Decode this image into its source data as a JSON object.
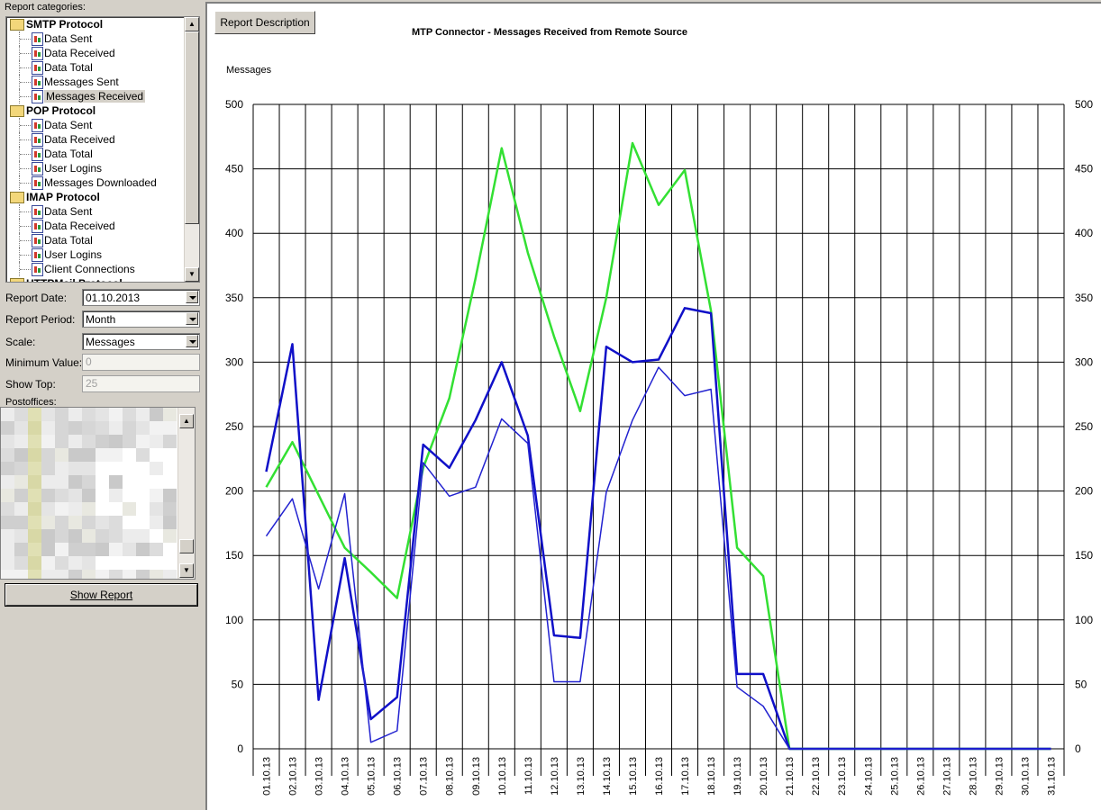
{
  "sidebar": {
    "categories_label": "Report categories:",
    "tree": [
      {
        "type": "group",
        "label": "SMTP Protocol"
      },
      {
        "type": "leaf",
        "label": "Data Sent"
      },
      {
        "type": "leaf",
        "label": "Data Received"
      },
      {
        "type": "leaf",
        "label": "Data Total"
      },
      {
        "type": "leaf",
        "label": "Messages Sent"
      },
      {
        "type": "leaf",
        "label": "Messages Received",
        "selected": true
      },
      {
        "type": "group",
        "label": "POP Protocol"
      },
      {
        "type": "leaf",
        "label": "Data Sent"
      },
      {
        "type": "leaf",
        "label": "Data Received"
      },
      {
        "type": "leaf",
        "label": "Data Total"
      },
      {
        "type": "leaf",
        "label": "User Logins"
      },
      {
        "type": "leaf",
        "label": "Messages Downloaded"
      },
      {
        "type": "group",
        "label": "IMAP Protocol"
      },
      {
        "type": "leaf",
        "label": "Data Sent"
      },
      {
        "type": "leaf",
        "label": "Data Received"
      },
      {
        "type": "leaf",
        "label": "Data Total"
      },
      {
        "type": "leaf",
        "label": "User Logins"
      },
      {
        "type": "leaf",
        "label": "Client Connections"
      },
      {
        "type": "group",
        "label": "HTTPMail Protocol"
      }
    ],
    "report_date_label": "Report Date:",
    "report_date_value": "01.10.2013",
    "report_period_label": "Report Period:",
    "report_period_value": "Month",
    "scale_label": "Scale:",
    "scale_value": "Messages",
    "min_value_label": "Minimum Value:",
    "min_value": "0",
    "show_top_label": "Show Top:",
    "show_top_value": "25",
    "postoffices_label": "Postoffices:",
    "show_report_label": "Show Report"
  },
  "panel": {
    "description_button": "Report Description"
  },
  "chart_data": {
    "type": "line",
    "title": "MTP Connector - Messages Received from Remote Source",
    "ylabel": "Messages",
    "ylim": [
      0,
      500
    ],
    "yticks": [
      0,
      50,
      100,
      150,
      200,
      250,
      300,
      350,
      400,
      450,
      500
    ],
    "grid": true,
    "categories": [
      "01.10.13",
      "02.10.13",
      "03.10.13",
      "04.10.13",
      "05.10.13",
      "06.10.13",
      "07.10.13",
      "08.10.13",
      "09.10.13",
      "10.10.13",
      "11.10.13",
      "12.10.13",
      "13.10.13",
      "14.10.13",
      "15.10.13",
      "16.10.13",
      "17.10.13",
      "18.10.13",
      "19.10.13",
      "20.10.13",
      "21.10.13",
      "22.10.13",
      "23.10.13",
      "24.10.13",
      "25.10.13",
      "26.10.13",
      "27.10.13",
      "28.10.13",
      "29.10.13",
      "30.10.13",
      "31.10.13"
    ],
    "series": [
      {
        "color": "#33e033",
        "width": 2.5,
        "values": [
          203,
          238,
          197,
          156,
          137,
          117,
          218,
          272,
          365,
          466,
          385,
          320,
          262,
          350,
          470,
          422,
          449,
          340,
          156,
          134,
          0,
          0,
          0,
          0,
          0,
          0,
          0,
          0,
          0,
          0,
          0
        ]
      },
      {
        "color": "#1010c8",
        "width": 2.5,
        "values": [
          215,
          314,
          38,
          148,
          23,
          40,
          236,
          218,
          255,
          300,
          243,
          88,
          86,
          312,
          300,
          302,
          342,
          338,
          58,
          58,
          0,
          0,
          0,
          0,
          0,
          0,
          0,
          0,
          0,
          0,
          0
        ]
      },
      {
        "color": "#2222d0",
        "width": 1.5,
        "values": [
          165,
          194,
          124,
          198,
          5,
          14,
          222,
          196,
          203,
          256,
          237,
          52,
          52,
          199,
          255,
          296,
          274,
          279,
          48,
          33,
          0,
          0,
          0,
          0,
          0,
          0,
          0,
          0,
          0,
          0,
          0
        ]
      }
    ]
  }
}
